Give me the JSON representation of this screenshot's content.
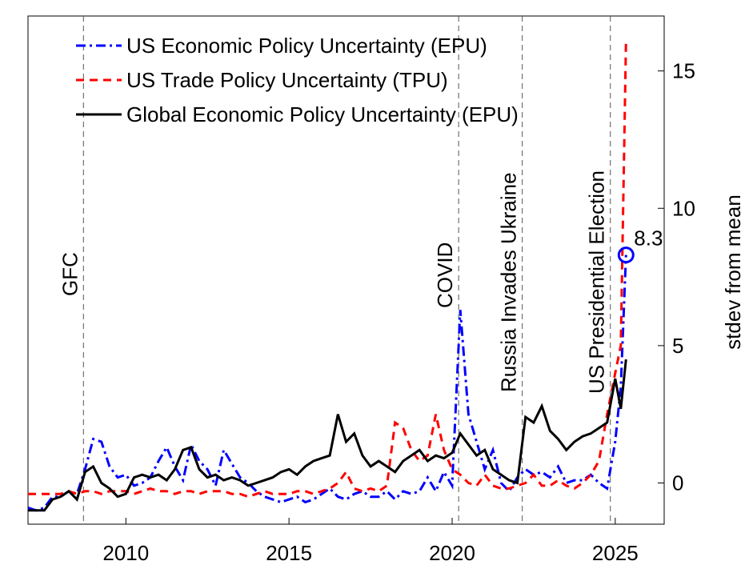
{
  "chart_data": {
    "type": "line",
    "x": [
      2007,
      2007.25,
      2007.5,
      2007.75,
      2008,
      2008.25,
      2008.5,
      2008.75,
      2009,
      2009.25,
      2009.5,
      2009.75,
      2010,
      2010.25,
      2010.5,
      2010.75,
      2011,
      2011.25,
      2011.5,
      2011.75,
      2012,
      2012.25,
      2012.5,
      2012.75,
      2013,
      2013.25,
      2013.5,
      2013.75,
      2014,
      2014.25,
      2014.5,
      2014.75,
      2015,
      2015.25,
      2015.5,
      2015.75,
      2016,
      2016.25,
      2016.5,
      2016.75,
      2017,
      2017.25,
      2017.5,
      2017.75,
      2018,
      2018.25,
      2018.5,
      2018.75,
      2019,
      2019.25,
      2019.5,
      2019.75,
      2020,
      2020.25,
      2020.5,
      2020.75,
      2021,
      2021.25,
      2021.5,
      2021.75,
      2022,
      2022.25,
      2022.5,
      2022.75,
      2023,
      2023.25,
      2023.5,
      2023.75,
      2024,
      2024.25,
      2024.5,
      2024.75,
      2025,
      2025.17,
      2025.33
    ],
    "series": [
      {
        "name": "US Economic Policy Uncertainty (EPU)",
        "color": "#0000ff",
        "style": "dashdot",
        "values": [
          -0.9,
          -1.0,
          -0.9,
          -0.5,
          -0.5,
          -0.3,
          -0.4,
          0.5,
          1.6,
          1.5,
          0.6,
          0.2,
          0.3,
          -0.1,
          0.0,
          0.2,
          0.8,
          1.3,
          0.6,
          0.1,
          1.4,
          0.8,
          0.5,
          -0.1,
          1.2,
          0.7,
          0.2,
          0.0,
          -0.3,
          -0.5,
          -0.6,
          -0.7,
          -0.6,
          -0.5,
          -0.7,
          -0.6,
          -0.4,
          -0.2,
          -0.5,
          -0.6,
          -0.4,
          -0.3,
          -0.5,
          -0.5,
          -0.3,
          -0.6,
          -0.3,
          -0.4,
          -0.3,
          0.2,
          -0.3,
          0.4,
          -0.1,
          6.3,
          2.5,
          1.5,
          0.5,
          1.2,
          0.0,
          -0.3,
          0.2,
          0.5,
          0.3,
          0.4,
          0.2,
          0.6,
          0.0,
          0.1,
          0.1,
          0.3,
          0.0,
          -0.2,
          1.5,
          3.5,
          8.3
        ]
      },
      {
        "name": "US Trade Policy Uncertainty (TPU)",
        "color": "#ff0000",
        "style": "dashed",
        "values": [
          -0.4,
          -0.4,
          -0.4,
          -0.4,
          -0.4,
          -0.3,
          -0.4,
          -0.3,
          -0.3,
          -0.4,
          -0.3,
          -0.3,
          -0.3,
          -0.4,
          -0.3,
          -0.2,
          -0.3,
          -0.3,
          -0.4,
          -0.3,
          -0.3,
          -0.4,
          -0.3,
          -0.3,
          -0.3,
          -0.4,
          -0.4,
          -0.5,
          -0.4,
          -0.3,
          -0.4,
          -0.4,
          -0.4,
          -0.3,
          -0.3,
          -0.4,
          -0.3,
          -0.2,
          0.0,
          0.4,
          -0.2,
          -0.3,
          -0.2,
          -0.3,
          -0.1,
          2.2,
          2.0,
          1.2,
          0.8,
          1.0,
          2.5,
          1.2,
          0.5,
          0.3,
          0.0,
          -0.1,
          0.3,
          -0.1,
          -0.2,
          -0.2,
          -0.1,
          0.0,
          0.3,
          -0.1,
          -0.1,
          0.1,
          -0.1,
          -0.2,
          0.0,
          0.3,
          0.8,
          2.5,
          4.0,
          5.0,
          16.1
        ]
      },
      {
        "name": "Global Economic Policy Uncertainty (EPU)",
        "color": "#000000",
        "style": "solid",
        "values": [
          -1.0,
          -1.0,
          -1.0,
          -0.6,
          -0.5,
          -0.3,
          -0.6,
          0.4,
          0.6,
          0.0,
          -0.2,
          -0.5,
          -0.4,
          0.2,
          0.3,
          0.2,
          0.3,
          0.1,
          0.5,
          1.2,
          1.3,
          0.5,
          0.2,
          0.3,
          0.1,
          0.2,
          0.1,
          -0.1,
          0.0,
          0.1,
          0.2,
          0.4,
          0.5,
          0.3,
          0.6,
          0.8,
          0.9,
          1.0,
          2.5,
          1.5,
          1.8,
          1.0,
          0.6,
          0.8,
          0.6,
          0.4,
          0.8,
          1.0,
          1.2,
          0.8,
          1.0,
          0.9,
          1.1,
          1.8,
          1.4,
          1.0,
          1.2,
          0.5,
          0.3,
          0.1,
          0.0,
          2.4,
          2.2,
          2.8,
          1.9,
          1.6,
          1.2,
          1.5,
          1.7,
          1.8,
          2.0,
          2.2,
          3.8,
          2.7,
          4.5
        ]
      }
    ],
    "events": [
      {
        "x": 2008.7,
        "label": "GFC"
      },
      {
        "x": 2020.2,
        "label": "COVID"
      },
      {
        "x": 2022.15,
        "label": "Russia Invades Ukraine"
      },
      {
        "x": 2024.85,
        "label": "US Presidential Election"
      }
    ],
    "highlight": {
      "x": 2025.33,
      "value": 8.3,
      "color": "#0000ff"
    },
    "ylabel": "stdev from mean",
    "xlim": [
      2007,
      2026.5
    ],
    "xticks": [
      2010,
      2015,
      2020,
      2025
    ],
    "ylim": [
      -1.5,
      17
    ],
    "yticks": [
      0,
      5,
      10,
      15
    ],
    "legend": "upper left"
  }
}
